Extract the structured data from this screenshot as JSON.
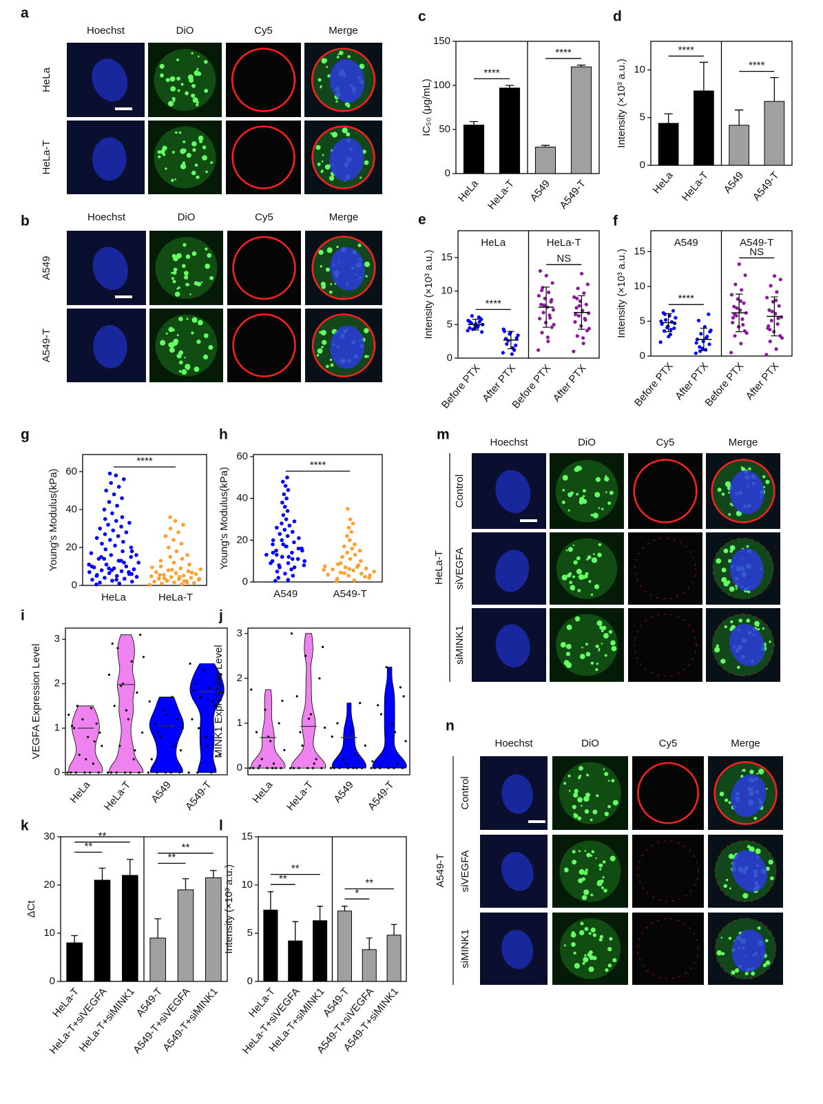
{
  "image_panels": [
    {
      "letter": "a",
      "columns": [
        "Hoechst",
        "DiO",
        "Cy5",
        "Merge"
      ],
      "rows": [
        "HeLa",
        "HeLa-T"
      ]
    },
    {
      "letter": "b",
      "columns": [
        "Hoechst",
        "DiO",
        "Cy5",
        "Merge"
      ],
      "rows": [
        "A549",
        "A549-T"
      ]
    },
    {
      "letter": "m",
      "group": "HeLa-T",
      "columns": [
        "Hoechst",
        "DiO",
        "Cy5",
        "Merge"
      ],
      "rows": [
        "Control",
        "siVEGFA",
        "siMINK1"
      ]
    },
    {
      "letter": "n",
      "group": "A549-T",
      "columns": [
        "Hoechst",
        "DiO",
        "Cy5",
        "Merge"
      ],
      "rows": [
        "Control",
        "siVEGFA",
        "siMINK1"
      ]
    }
  ],
  "chart_data": [
    {
      "panel": "c",
      "type": "bar",
      "ylabel": "IC₅₀ (μg/mL)",
      "ylim": [
        0,
        150
      ],
      "yticks": [
        0,
        50,
        100,
        150
      ],
      "groups": [
        {
          "categories": [
            "HeLa",
            "HeLa-T"
          ],
          "values": [
            55,
            97
          ],
          "error": [
            4,
            3
          ],
          "color": "#000000",
          "annotations": [
            {
              "text": "****",
              "from": 0,
              "to": 1
            }
          ]
        },
        {
          "categories": [
            "A549",
            "A549-T"
          ],
          "values": [
            30,
            121
          ],
          "error": [
            2,
            2
          ],
          "color": "#a0a0a0",
          "annotations": [
            {
              "text": "****",
              "from": 0,
              "to": 1
            }
          ]
        }
      ]
    },
    {
      "panel": "d",
      "type": "bar",
      "ylabel": "Intensity (×10³ a.u.)",
      "ylim": [
        0,
        13
      ],
      "yticks": [
        0,
        5,
        10
      ],
      "groups": [
        {
          "categories": [
            "HeLa",
            "HeLa-T"
          ],
          "values": [
            4.4,
            7.8
          ],
          "error": [
            1,
            3
          ],
          "color": "#000000",
          "annotations": [
            {
              "text": "****",
              "from": 0,
              "to": 1
            }
          ]
        },
        {
          "categories": [
            "A549",
            "A549-T"
          ],
          "values": [
            4.2,
            6.7
          ],
          "error": [
            1.6,
            2.5
          ],
          "color": "#a0a0a0",
          "annotations": [
            {
              "text": "****",
              "from": 0,
              "to": 1
            }
          ]
        }
      ]
    },
    {
      "panel": "e",
      "type": "dot_scatter",
      "ylabel": "Intensity (×10³ a.u.)",
      "ylim": [
        0,
        19
      ],
      "yticks": [
        0,
        5,
        10,
        15
      ],
      "groups": [
        {
          "name": "HeLa",
          "categories": [
            "Before PTX",
            "After PTX"
          ],
          "color": "#0000ff",
          "means": [
            5,
            2.7
          ],
          "sd": [
            0.8,
            1.3
          ],
          "points": [
            [
              4.1,
              4.6,
              5.2,
              5.8,
              4.9,
              5.5,
              6.1,
              4.3,
              5.0,
              4.7,
              5.3,
              5.9,
              4.4,
              5.6,
              4.8,
              6.3,
              3.9,
              5.1,
              4.5,
              5.4
            ],
            [
              0.8,
              1.5,
              2.1,
              3.0,
              3.8,
              4.0,
              1.2,
              2.6,
              3.4,
              0.6,
              2.9,
              1.9,
              3.6,
              4.3
            ]
          ],
          "annotations": [
            {
              "text": "****",
              "from": 0,
              "to": 1
            }
          ]
        },
        {
          "name": "HeLa-T",
          "categories": [
            "Before PTX",
            "After PTX"
          ],
          "color": "#8b1a9b",
          "means": [
            7.6,
            6.8
          ],
          "sd": [
            3,
            2.5
          ],
          "points": [
            [
              1.2,
              2.5,
              3.8,
              4.6,
              5.3,
              5.9,
              6.4,
              6.8,
              7.2,
              7.6,
              8.0,
              8.4,
              8.9,
              9.3,
              9.8,
              10.5,
              11.2,
              12.3,
              13.0,
              6.0,
              7.9,
              5.0,
              3.1,
              10.1,
              8.7
            ],
            [
              1.0,
              2.2,
              3.3,
              4.1,
              4.8,
              5.4,
              5.9,
              6.3,
              6.7,
              7.1,
              7.5,
              8.0,
              8.5,
              9.1,
              9.7,
              10.4,
              11.0,
              12.6,
              6.5,
              5.7,
              7.8,
              4.4,
              3.0,
              8.9
            ]
          ],
          "annotations": [
            {
              "text": "NS",
              "from": 0,
              "to": 1
            }
          ]
        }
      ]
    },
    {
      "panel": "f",
      "type": "dot_scatter",
      "ylabel": "Intensity (×10³ a.u.)",
      "ylim": [
        0,
        18
      ],
      "yticks": [
        0,
        5,
        10,
        15
      ],
      "groups": [
        {
          "name": "A549",
          "categories": [
            "Before PTX",
            "After PTX"
          ],
          "color": "#0000ff",
          "means": [
            4.8,
            2.4
          ],
          "sd": [
            1.3,
            1.6
          ],
          "points": [
            [
              2.0,
              3.1,
              3.6,
              4.0,
              4.3,
              4.6,
              4.9,
              5.2,
              5.5,
              5.8,
              6.2,
              6.5,
              4.1,
              5.0,
              3.8,
              6.0,
              4.7,
              2.8
            ],
            [
              0.4,
              0.9,
              1.3,
              1.7,
              2.1,
              2.4,
              2.8,
              3.2,
              3.7,
              4.2,
              5.1,
              6.0,
              1.1,
              1.9,
              2.6,
              0.7,
              3.5
            ]
          ],
          "annotations": [
            {
              "text": "****",
              "from": 0,
              "to": 1
            }
          ]
        },
        {
          "name": "A549-T",
          "categories": [
            "Before PTX",
            "After PTX"
          ],
          "color": "#8b1a9b",
          "means": [
            6.2,
            5.7
          ],
          "sd": [
            2.7,
            2.8
          ],
          "points": [
            [
              0.5,
              1.8,
              2.9,
              3.6,
              4.2,
              4.8,
              5.3,
              5.8,
              6.2,
              6.6,
              7.1,
              7.6,
              8.2,
              8.8,
              9.5,
              10.3,
              11.6,
              13.2,
              5.5,
              4.5,
              6.9,
              3.3,
              7.9,
              6.0
            ],
            [
              0.2,
              1.0,
              2.1,
              2.9,
              3.5,
              4.0,
              4.6,
              5.1,
              5.6,
              6.1,
              6.6,
              7.2,
              7.8,
              8.4,
              9.2,
              10.1,
              11.0,
              11.5,
              4.3,
              5.4,
              6.4,
              2.6,
              8.0,
              3.8
            ]
          ],
          "annotations": [
            {
              "text": "NS",
              "from": 0,
              "to": 1
            }
          ]
        }
      ]
    },
    {
      "panel": "g",
      "type": "beeswarm",
      "ylabel": "Young's Modulus(kPa)",
      "ylim": [
        0,
        69
      ],
      "yticks": [
        0,
        20,
        40,
        60
      ],
      "categories": [
        "HeLa",
        "HeLa-T"
      ],
      "colors": [
        "#0000ff",
        "#ffa030"
      ],
      "points": [
        [
          0.5,
          1,
          1.5,
          2,
          2.5,
          3,
          3.5,
          4,
          4.5,
          5,
          5.5,
          6,
          6.5,
          7,
          7.5,
          8,
          8.5,
          9,
          9.5,
          10,
          11,
          12,
          13,
          14,
          15,
          16,
          17,
          18,
          19,
          20,
          21,
          22,
          23,
          24,
          25,
          26,
          27,
          28,
          29,
          30,
          31,
          32,
          33,
          34,
          35,
          36,
          38,
          40,
          42,
          44,
          46,
          48,
          50,
          52,
          54,
          56,
          58,
          59,
          6,
          8,
          10,
          12,
          14,
          16,
          3,
          5,
          7,
          9,
          11,
          13,
          15,
          18
        ],
        [
          0.3,
          0.6,
          1,
          1.3,
          1.6,
          2,
          2.3,
          2.6,
          3,
          3.3,
          3.6,
          4,
          4.4,
          4.8,
          5.2,
          5.6,
          6,
          6.5,
          7,
          7.5,
          8,
          8.5,
          9,
          10,
          11,
          12,
          13,
          14,
          15,
          16,
          18,
          20,
          22,
          24,
          26,
          28,
          30,
          32,
          34,
          36,
          1.5,
          2.5,
          3.5,
          4.5,
          5.5,
          6.8,
          8.2,
          9.5,
          2.2,
          3.8
        ]
      ],
      "annotations": [
        {
          "text": "****",
          "from": 0,
          "to": 1
        }
      ]
    },
    {
      "panel": "h",
      "type": "beeswarm",
      "ylabel": "Young's Modulus(kPa)",
      "ylim": [
        0,
        61
      ],
      "yticks": [
        0,
        20,
        40,
        60
      ],
      "categories": [
        "A549",
        "A549-T"
      ],
      "colors": [
        "#0000ff",
        "#ffa030"
      ],
      "points": [
        [
          0.5,
          1,
          2,
          3,
          4,
          5,
          6,
          7,
          8,
          9,
          10,
          11,
          12,
          13,
          14,
          15,
          16,
          17,
          18,
          19,
          20,
          21,
          22,
          23,
          24,
          25,
          26,
          27,
          28,
          29,
          30,
          32,
          34,
          36,
          38,
          40,
          42,
          44,
          46,
          48,
          50,
          8,
          10,
          12,
          14,
          16,
          18,
          20,
          11,
          13,
          15,
          17,
          9,
          7
        ],
        [
          0.3,
          0.8,
          1.5,
          2,
          3,
          3.5,
          4,
          4.5,
          5,
          5.5,
          6,
          6.5,
          7,
          7.5,
          8,
          9,
          10,
          11,
          12,
          13,
          14,
          15,
          16,
          17,
          18,
          20,
          22,
          24,
          26,
          28,
          30,
          35,
          2.5,
          4.2,
          5.8,
          7.2,
          8.5,
          3.2,
          6.2
        ]
      ],
      "annotations": [
        {
          "text": "****",
          "from": 0,
          "to": 1
        }
      ]
    },
    {
      "panel": "i",
      "type": "violin",
      "ylabel": "VEGFA Expression Level",
      "ylim": [
        -0.05,
        3.25
      ],
      "yticks": [
        0,
        1,
        2,
        3
      ],
      "categories": [
        "HeLa",
        "HeLa-T",
        "A549",
        "A549-T"
      ],
      "colors": [
        "#ee82ee",
        "#ee82ee",
        "#0000ff",
        "#0000ff"
      ],
      "medians": [
        1,
        1.98,
        1.05,
        1.82
      ],
      "points": [
        [
          0,
          0,
          0,
          0,
          0,
          0,
          0.2,
          0.4,
          0.6,
          0.8,
          1.0,
          1.1,
          1.2,
          1.3,
          1.45,
          1.5,
          0.9,
          0.3,
          1.05,
          0.7
        ],
        [
          0,
          0,
          0,
          0,
          0,
          0,
          0.3,
          0.6,
          0.9,
          1.2,
          1.5,
          1.8,
          2.0,
          2.2,
          2.5,
          2.8,
          3.1,
          1.4,
          2.9,
          0.5,
          1.95,
          2.6
        ],
        [
          0,
          0,
          0,
          0,
          0,
          0.3,
          0.6,
          0.8,
          1.0,
          1.05,
          1.1,
          1.2,
          1.4,
          1.6,
          1.7,
          0.9,
          0.5,
          1.3
        ],
        [
          0,
          0,
          0,
          0.4,
          0.8,
          1.2,
          1.5,
          1.7,
          1.8,
          1.9,
          2.0,
          2.1,
          2.3,
          2.45,
          1.6,
          1.0,
          2.2,
          0.6,
          1.85
        ]
      ]
    },
    {
      "panel": "j",
      "type": "violin",
      "ylabel": "MINK1 Expression Level",
      "ylim": [
        -0.15,
        3.12
      ],
      "yticks": [
        0,
        1,
        2,
        3
      ],
      "categories": [
        "HeLa",
        "HeLa-T",
        "A549",
        "A549-T"
      ],
      "colors": [
        "#ee82ee",
        "#ee82ee",
        "#0000ff",
        "#0000ff"
      ],
      "medians": [
        0.68,
        0.93,
        0.68,
        null
      ],
      "points": [
        [
          0,
          0,
          0,
          0,
          0,
          0,
          0,
          0.2,
          0.4,
          0.6,
          0.8,
          1.0,
          1.3,
          1.75,
          0.1,
          0.05,
          1.5,
          0.7
        ],
        [
          0,
          0,
          0,
          0,
          0,
          0,
          0.2,
          0.5,
          0.9,
          1.2,
          1.6,
          2.0,
          2.5,
          3.0,
          0.1,
          0.8,
          2.7,
          1.1
        ],
        [
          0,
          0,
          0,
          0,
          0,
          0,
          0,
          0.2,
          0.5,
          0.8,
          1.0,
          1.45,
          0.1,
          0.7,
          0.3
        ],
        [
          0,
          0,
          0,
          0,
          0,
          0,
          0.1,
          0.3,
          0.6,
          1.0,
          1.4,
          1.8,
          2.25,
          0.15,
          0.8,
          1.2,
          1.6
        ]
      ]
    },
    {
      "panel": "k",
      "type": "bar",
      "ylabel": "ΔCt",
      "ylim": [
        0,
        30
      ],
      "yticks": [
        0,
        10,
        20,
        30
      ],
      "groups": [
        {
          "categories": [
            "HeLa-T",
            "HeLa-T+siVEGFA",
            "HeLa-T+siMINK1"
          ],
          "values": [
            8,
            21,
            22
          ],
          "error": [
            1.5,
            2.5,
            3.3
          ],
          "color": "#000000",
          "annotations": [
            {
              "text": "**",
              "from": 0,
              "to": 1
            },
            {
              "text": "**",
              "from": 0,
              "to": 2
            }
          ]
        },
        {
          "categories": [
            "A549-T",
            "A549-T+siVEGFA",
            "A549-T+siMINK1"
          ],
          "values": [
            9,
            19,
            21.5
          ],
          "error": [
            4,
            2.3,
            1.5
          ],
          "color": "#a0a0a0",
          "annotations": [
            {
              "text": "**",
              "from": 0,
              "to": 1
            },
            {
              "text": "**",
              "from": 0,
              "to": 2
            }
          ]
        }
      ]
    },
    {
      "panel": "l",
      "type": "bar",
      "ylabel": "Intensity (×10³ a.u.)",
      "ylim": [
        0,
        15
      ],
      "yticks": [
        0,
        5,
        10,
        15
      ],
      "groups": [
        {
          "categories": [
            "HeLa-T",
            "HeLa-T+siVEGFA",
            "HeLa-T+siMINK1"
          ],
          "values": [
            7.4,
            4.2,
            6.3
          ],
          "error": [
            1.9,
            2,
            1.5
          ],
          "color": "#000000",
          "annotations": [
            {
              "text": "**",
              "from": 0,
              "to": 1
            },
            {
              "text": "**",
              "from": 0,
              "to": 2
            }
          ]
        },
        {
          "categories": [
            "A549-T",
            "A549-T+siVEGFA",
            "A549-T+siMINK1"
          ],
          "values": [
            7.3,
            3.3,
            4.8
          ],
          "error": [
            0.5,
            1.2,
            1.1
          ],
          "color": "#a0a0a0",
          "annotations": [
            {
              "text": "*",
              "from": 0,
              "to": 1
            },
            {
              "text": "**",
              "from": 0,
              "to": 2
            }
          ]
        }
      ]
    }
  ]
}
